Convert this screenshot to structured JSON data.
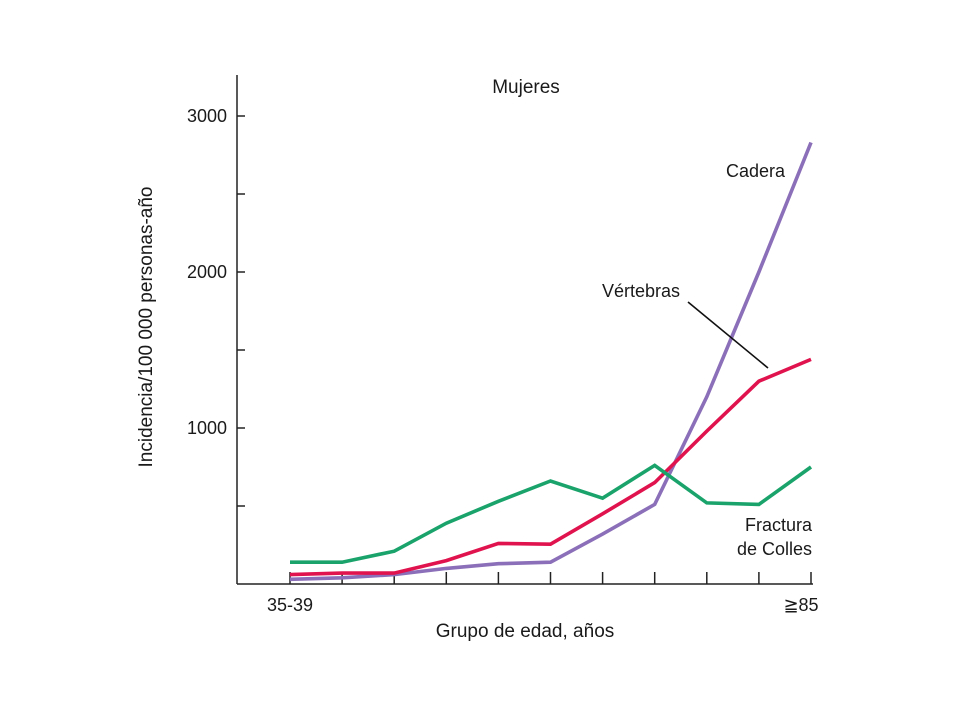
{
  "chart_data": {
    "type": "line",
    "title": "Mujeres",
    "xlabel": "Grupo de edad, años",
    "ylabel": "Incidencia/100 000 personas-año",
    "x_tick_labels": [
      "35-39",
      "≧85"
    ],
    "y_tick_labels": [
      "1000",
      "2000",
      "3000"
    ],
    "ylim": [
      0,
      3300
    ],
    "y_major_ticks": [
      1000,
      2000,
      3000
    ],
    "y_minor_ticks": [
      500,
      1500,
      2500
    ],
    "n_points": 11,
    "grid": false,
    "series": [
      {
        "name": "Cadera",
        "color": "#8b6fb8",
        "values": [
          30,
          40,
          60,
          100,
          130,
          140,
          320,
          510,
          1200,
          2000,
          2830
        ]
      },
      {
        "name": "Vértebras",
        "color": "#e0134e",
        "values": [
          60,
          70,
          70,
          150,
          260,
          255,
          450,
          650,
          980,
          1300,
          1440
        ]
      },
      {
        "name": "Fractura de Colles",
        "color": "#1aa36b",
        "values": [
          140,
          140,
          210,
          390,
          530,
          660,
          550,
          760,
          520,
          510,
          750
        ]
      }
    ],
    "series_labels": {
      "hip": "Cadera",
      "vertebrae": "Vértebras",
      "colles_line1": "Fractura",
      "colles_line2": "de Colles"
    }
  }
}
